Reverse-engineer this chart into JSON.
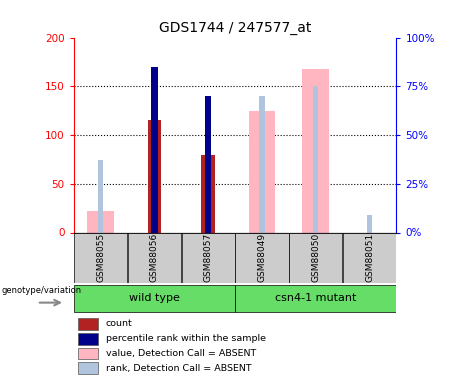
{
  "title": "GDS1744 / 247577_at",
  "samples": [
    "GSM88055",
    "GSM88056",
    "GSM88057",
    "GSM88049",
    "GSM88050",
    "GSM88051"
  ],
  "count_values": [
    0,
    115,
    79,
    0,
    0,
    0
  ],
  "percentile_values": [
    0,
    85,
    70,
    0,
    0,
    0
  ],
  "absent_value_values": [
    22,
    0,
    0,
    125,
    168,
    0
  ],
  "absent_rank_values": [
    37,
    0,
    0,
    70,
    75,
    9
  ],
  "ylim_left": [
    0,
    200
  ],
  "ylim_right": [
    0,
    100
  ],
  "yticks_left": [
    0,
    50,
    100,
    150,
    200
  ],
  "ytick_labels_left": [
    "0",
    "50",
    "100",
    "150",
    "200"
  ],
  "yticks_right": [
    0,
    25,
    50,
    75,
    100
  ],
  "ytick_labels_right": [
    "0%",
    "25%",
    "50%",
    "75%",
    "100%"
  ],
  "colors": {
    "count": "#B22222",
    "percentile": "#00008B",
    "absent_value": "#FFB6C1",
    "absent_rank": "#B0C4DE",
    "group_box": "#66DD66",
    "sample_box": "#CCCCCC"
  },
  "legend_items": [
    {
      "label": "count",
      "color": "#B22222"
    },
    {
      "label": "percentile rank within the sample",
      "color": "#00008B"
    },
    {
      "label": "value, Detection Call = ABSENT",
      "color": "#FFB6C1"
    },
    {
      "label": "rank, Detection Call = ABSENT",
      "color": "#B0C4DE"
    }
  ]
}
